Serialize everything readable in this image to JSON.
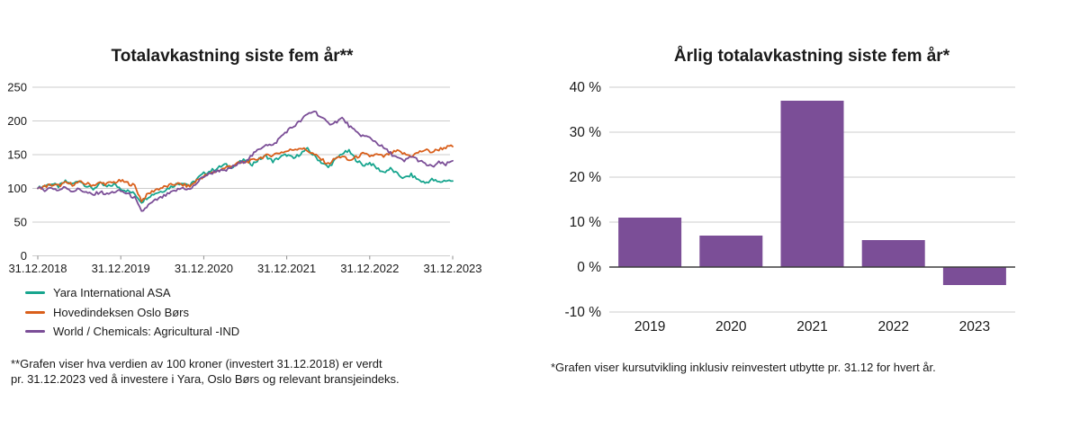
{
  "figure": {
    "background": "#ffffff",
    "text_color": "#1a1a1a",
    "grid_color": "#cccccc",
    "axis_line_color": "#3d3d3d"
  },
  "chart_data": [
    {
      "type": "line",
      "title": "Totalavkastning siste fem år**",
      "x_tick_labels": [
        "31.12.2018",
        "31.12.2019",
        "31.12.2020",
        "31.12.2021",
        "31.12.2022",
        "31.12.2023"
      ],
      "y_ticks": [
        0,
        50,
        100,
        150,
        200,
        250
      ],
      "ylim": [
        0,
        250
      ],
      "grid": "horizontal",
      "legend_position": "bottom-left",
      "series": [
        {
          "name": "Yara International ASA",
          "color": "#17a58e",
          "values": [
            100,
            104,
            107,
            103,
            110,
            106,
            112,
            104,
            99,
            107,
            102,
            106,
            100,
            96,
            92,
            80,
            88,
            93,
            96,
            101,
            106,
            109,
            104,
            114,
            122,
            126,
            130,
            135,
            132,
            138,
            142,
            136,
            143,
            148,
            140,
            146,
            150,
            144,
            152,
            158,
            148,
            139,
            131,
            142,
            152,
            155,
            143,
            134,
            138,
            130,
            124,
            129,
            121,
            115,
            120,
            113,
            108,
            113,
            109,
            112,
            111
          ]
        },
        {
          "name": "Hovedindeksen Oslo Børs",
          "color": "#d95f1b",
          "values": [
            100,
            103,
            105,
            104,
            108,
            106,
            109,
            107,
            105,
            108,
            107,
            109,
            111,
            108,
            104,
            82,
            92,
            98,
            101,
            104,
            107,
            105,
            103,
            112,
            118,
            122,
            126,
            130,
            134,
            137,
            139,
            141,
            145,
            148,
            150,
            153,
            155,
            158,
            160,
            156,
            150,
            143,
            136,
            144,
            148,
            141,
            146,
            151,
            148,
            150,
            147,
            152,
            155,
            151,
            148,
            153,
            157,
            154,
            158,
            161,
            162
          ]
        },
        {
          "name": "World / Chemicals: Agricultural -IND",
          "color": "#7b4e97",
          "values": [
            100,
            98,
            101,
            97,
            102,
            96,
            99,
            94,
            90,
            95,
            91,
            95,
            96,
            92,
            86,
            65,
            75,
            82,
            87,
            92,
            97,
            101,
            98,
            108,
            118,
            122,
            127,
            125,
            131,
            136,
            141,
            149,
            158,
            166,
            163,
            175,
            185,
            192,
            200,
            210,
            215,
            205,
            196,
            198,
            204,
            193,
            183,
            178,
            175,
            168,
            160,
            152,
            145,
            140,
            148,
            142,
            136,
            132,
            138,
            135,
            141
          ]
        }
      ],
      "footnote_lines": [
        "**Grafen viser hva verdien av 100 kroner (investert 31.12.2018) er verdt",
        "pr. 31.12.2023 ved å investere i Yara, Oslo Børs og relevant bransjeindeks."
      ]
    },
    {
      "type": "bar",
      "title": "Årlig totalavkastning siste fem år*",
      "categories": [
        "2019",
        "2020",
        "2021",
        "2022",
        "2023"
      ],
      "values": [
        11,
        7,
        37,
        6,
        -4
      ],
      "y_ticks": [
        -10,
        0,
        10,
        20,
        30,
        40
      ],
      "y_tick_suffix": " %",
      "ylim": [
        -10,
        40
      ],
      "bar_color": "#7b4e97",
      "grid": "horizontal",
      "footnote": "*Grafen viser kursutvikling inklusiv reinvestert utbytte pr. 31.12 for hvert år."
    }
  ]
}
